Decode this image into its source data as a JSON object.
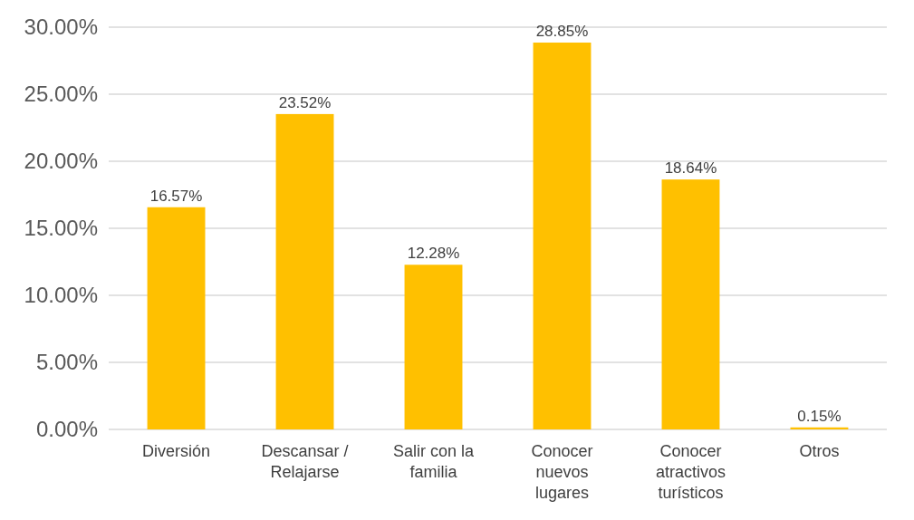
{
  "chart_data": {
    "type": "bar",
    "categories": [
      "Diversión",
      "Descansar / Relajarse",
      "Salir con la familia",
      "Conocer nuevos lugares",
      "Conocer atractivos turísticos",
      "Otros"
    ],
    "values": [
      16.57,
      23.52,
      12.28,
      28.85,
      18.64,
      0.15
    ],
    "value_labels": [
      "16.57%",
      "23.52%",
      "12.28%",
      "28.85%",
      "18.64%",
      "0.15%"
    ],
    "color": "#ffc000",
    "ylim": [
      0,
      30
    ],
    "yticks": [
      {
        "value": 0,
        "label": "0.00%"
      },
      {
        "value": 5,
        "label": "5.00%"
      },
      {
        "value": 10,
        "label": "10.00%"
      },
      {
        "value": 15,
        "label": "15.00%"
      },
      {
        "value": 20,
        "label": "20.00%"
      },
      {
        "value": 25,
        "label": "25.00%"
      },
      {
        "value": 30,
        "label": "30.00%"
      }
    ],
    "grid": "y"
  }
}
